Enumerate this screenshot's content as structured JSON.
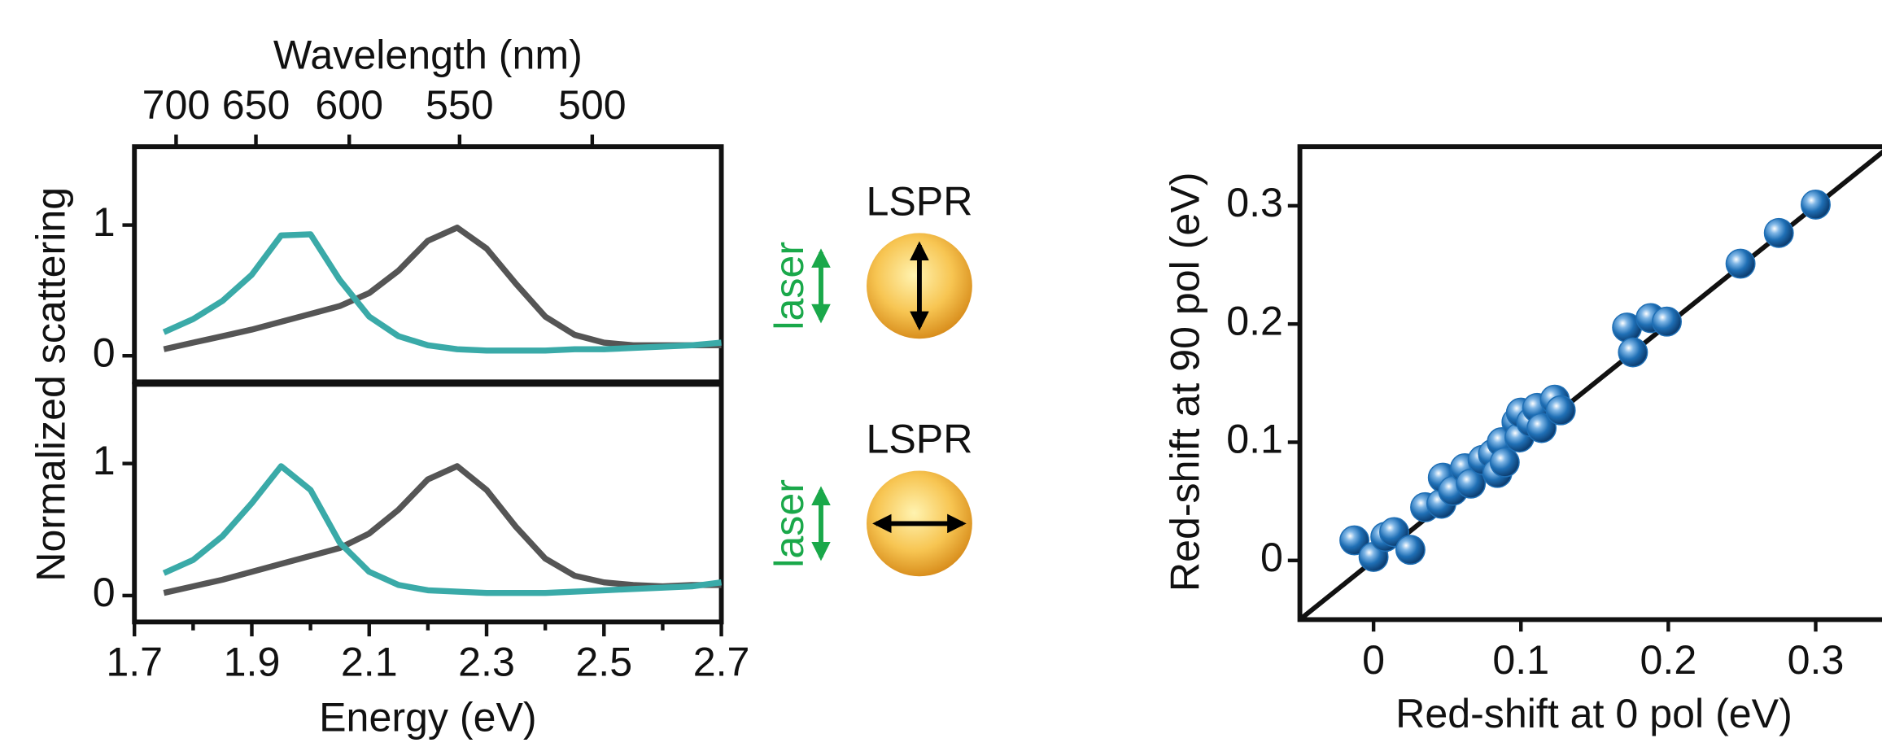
{
  "chart_data": [
    {
      "type": "line",
      "x2label": "Wavelength (nm)",
      "ylabel": "Normalized scattering",
      "x2ticks": [
        {
          "value": 1.771,
          "label": "700"
        },
        {
          "value": 1.907,
          "label": "650"
        },
        {
          "value": 2.066,
          "label": "600"
        },
        {
          "value": 2.254,
          "label": "550"
        },
        {
          "value": 2.48,
          "label": "500"
        }
      ],
      "xlim": [
        1.7,
        2.7
      ],
      "ylim": [
        -0.2,
        1.6
      ],
      "yticks": [
        0,
        1
      ],
      "annotations": [
        "laser",
        "LSPR"
      ],
      "x": [
        1.75,
        1.8,
        1.85,
        1.9,
        1.95,
        2.0,
        2.05,
        2.1,
        2.15,
        2.2,
        2.25,
        2.3,
        2.35,
        2.4,
        2.45,
        2.5,
        2.55,
        2.6,
        2.65,
        2.7
      ],
      "series": [
        {
          "color": "#555555",
          "values": [
            0.05,
            0.1,
            0.15,
            0.2,
            0.26,
            0.32,
            0.38,
            0.48,
            0.65,
            0.88,
            0.98,
            0.82,
            0.55,
            0.3,
            0.16,
            0.1,
            0.08,
            0.08,
            0.08,
            0.08
          ]
        },
        {
          "color": "#3aaaa8",
          "values": [
            0.18,
            0.28,
            0.42,
            0.62,
            0.92,
            0.93,
            0.58,
            0.3,
            0.15,
            0.08,
            0.05,
            0.04,
            0.04,
            0.04,
            0.05,
            0.05,
            0.06,
            0.07,
            0.08,
            0.1
          ]
        }
      ]
    },
    {
      "type": "line",
      "xlabel": "Energy (eV)",
      "xlim": [
        1.7,
        2.7
      ],
      "ylim": [
        -0.2,
        1.6
      ],
      "xticks": [
        1.7,
        1.9,
        2.1,
        2.3,
        2.5,
        2.7
      ],
      "xminorticks": [
        1.8,
        2.0,
        2.2,
        2.4,
        2.6
      ],
      "yticks": [
        0,
        1
      ],
      "annotations": [
        "laser",
        "LSPR"
      ],
      "x": [
        1.75,
        1.8,
        1.85,
        1.9,
        1.95,
        2.0,
        2.05,
        2.1,
        2.15,
        2.2,
        2.25,
        2.3,
        2.35,
        2.4,
        2.45,
        2.5,
        2.55,
        2.6,
        2.65,
        2.7
      ],
      "series": [
        {
          "color": "#555555",
          "values": [
            0.02,
            0.07,
            0.12,
            0.18,
            0.24,
            0.3,
            0.36,
            0.47,
            0.65,
            0.88,
            0.98,
            0.8,
            0.52,
            0.28,
            0.15,
            0.1,
            0.08,
            0.07,
            0.08,
            0.08
          ]
        },
        {
          "color": "#3aaaa8",
          "values": [
            0.17,
            0.27,
            0.45,
            0.7,
            0.98,
            0.8,
            0.4,
            0.18,
            0.08,
            0.04,
            0.03,
            0.02,
            0.02,
            0.02,
            0.03,
            0.04,
            0.05,
            0.06,
            0.07,
            0.1
          ]
        }
      ]
    },
    {
      "type": "scatter",
      "xlabel": "Red-shift at 0 pol (eV)",
      "ylabel": "Red-shift at 90 pol (eV)",
      "xlim": [
        -0.05,
        0.345
      ],
      "ylim": [
        -0.05,
        0.35
      ],
      "xticks": [
        0,
        0.1,
        0.2,
        0.3
      ],
      "yticks": [
        0,
        0.1,
        0.2,
        0.3
      ],
      "color": "#1f6fb5",
      "x": [
        -0.013,
        0,
        0.008,
        0.014,
        0.025,
        0.035,
        0.046,
        0.047,
        0.054,
        0.062,
        0.066,
        0.074,
        0.081,
        0.084,
        0.087,
        0.089,
        0.097,
        0.099,
        0.1,
        0.107,
        0.111,
        0.114,
        0.123,
        0.127,
        0.172,
        0.176,
        0.188,
        0.199,
        0.249,
        0.275,
        0.3
      ],
      "y": [
        0.017,
        0.003,
        0.02,
        0.024,
        0.009,
        0.045,
        0.048,
        0.07,
        0.059,
        0.078,
        0.065,
        0.085,
        0.09,
        0.074,
        0.1,
        0.083,
        0.117,
        0.104,
        0.125,
        0.117,
        0.129,
        0.112,
        0.136,
        0.127,
        0.197,
        0.176,
        0.205,
        0.202,
        0.251,
        0.277,
        0.301
      ]
    }
  ]
}
